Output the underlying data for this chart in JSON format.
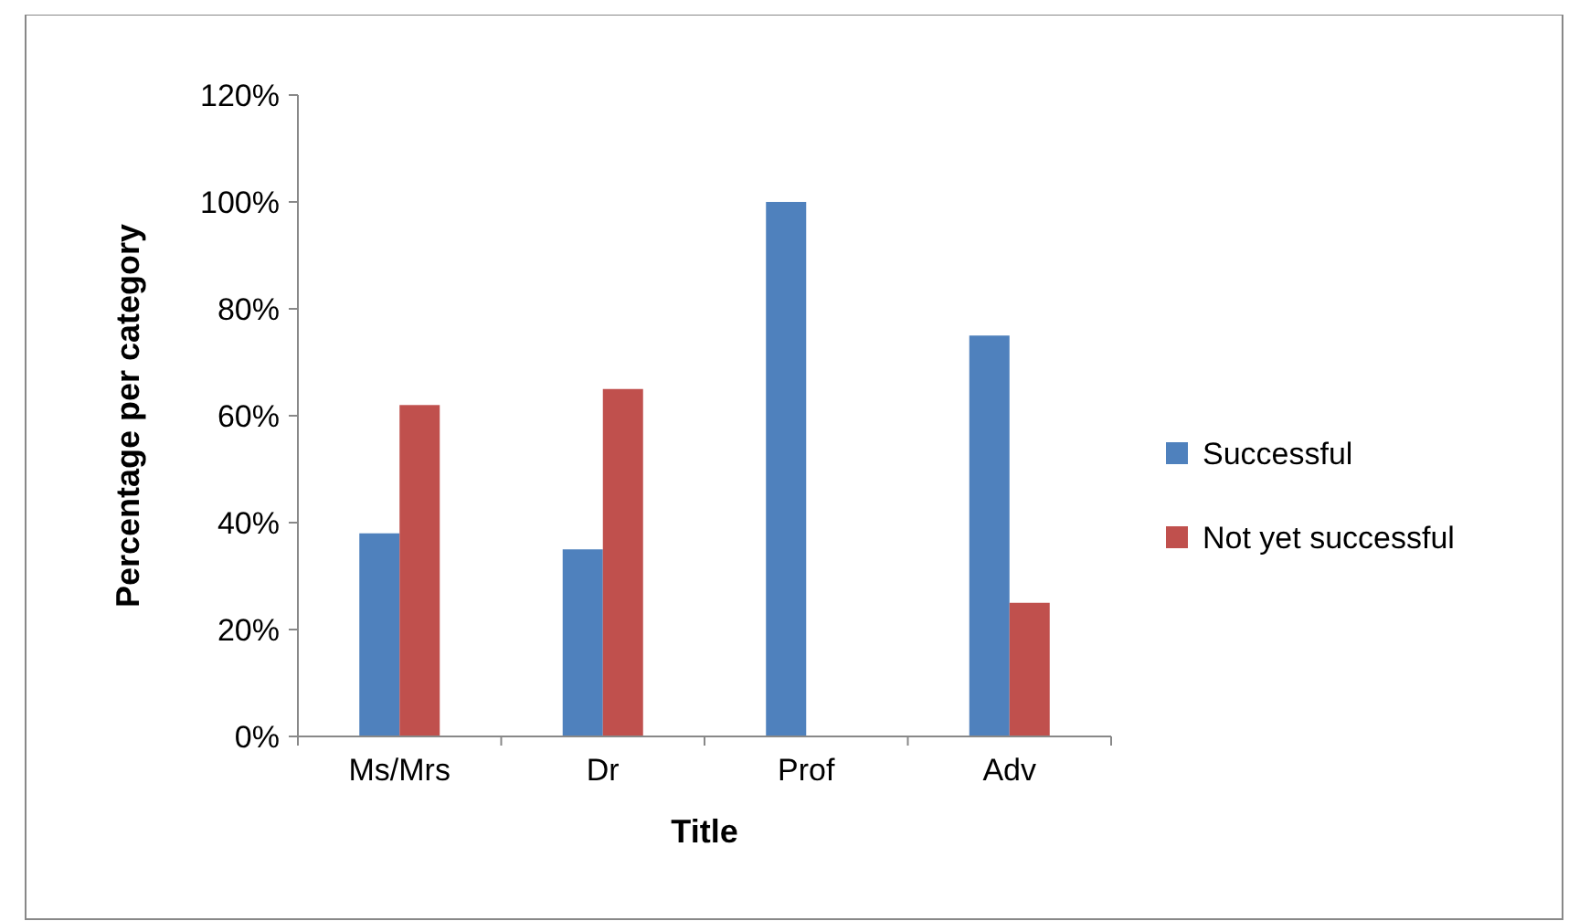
{
  "chart_data": {
    "type": "bar",
    "xlabel": "Title",
    "ylabel": "Percentage per category",
    "categories": [
      "Ms/Mrs",
      "Dr",
      "Prof",
      "Adv"
    ],
    "series": [
      {
        "name": "Successful",
        "color": "#4f81bd",
        "values": [
          38,
          35,
          100,
          75
        ]
      },
      {
        "name": "Not yet successful",
        "color": "#c0504d",
        "values": [
          62,
          65,
          null,
          25
        ]
      }
    ],
    "ylim": [
      0,
      120
    ],
    "yticks": [
      {
        "value": 0,
        "label": "0%"
      },
      {
        "value": 20,
        "label": "20%"
      },
      {
        "value": 40,
        "label": "40%"
      },
      {
        "value": 60,
        "label": "60%"
      },
      {
        "value": 80,
        "label": "80%"
      },
      {
        "value": 100,
        "label": "100%"
      },
      {
        "value": 120,
        "label": "120%"
      }
    ],
    "grid": false,
    "legend": "right"
  }
}
